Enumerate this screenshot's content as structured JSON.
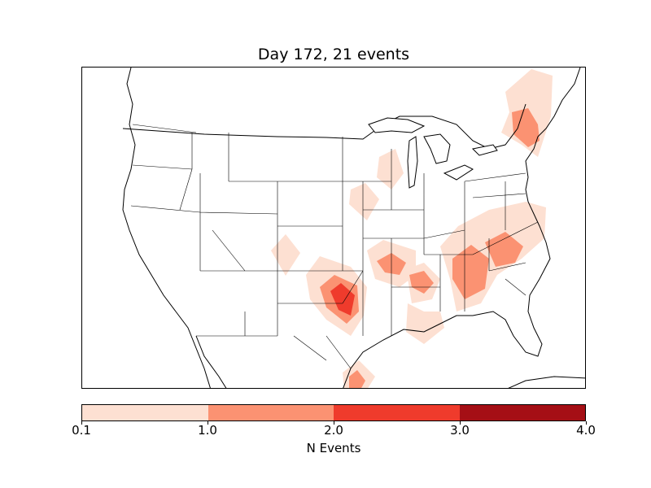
{
  "title": "Day 172, 21 events",
  "colorbar": {
    "label": "N Events",
    "ticks": [
      "0.1",
      "1.0",
      "2.0",
      "3.0",
      "4.0"
    ],
    "bins": [
      {
        "range": [
          0.1,
          1.0
        ],
        "color": "#fde0d2"
      },
      {
        "range": [
          1.0,
          2.0
        ],
        "color": "#fb9272"
      },
      {
        "range": [
          2.0,
          3.0
        ],
        "color": "#ef3b2c"
      },
      {
        "range": [
          3.0,
          4.0
        ],
        "color": "#a50f15"
      }
    ]
  },
  "map": {
    "region": "continental United States",
    "projection": "lambert-conformal",
    "features": [
      "coastlines",
      "country-borders",
      "state-borders",
      "great-lakes"
    ]
  },
  "event_regions": [
    {
      "area": "northern New England",
      "level": 1
    },
    {
      "area": "New Hampshire / Massachusetts",
      "level": 2
    },
    {
      "area": "Iowa / Wisconsin",
      "level": 1
    },
    {
      "area": "Illinois",
      "level": 1
    },
    {
      "area": "New Mexico / Colorado",
      "level": 1
    },
    {
      "area": "Oklahoma / north Texas",
      "level": 3
    },
    {
      "area": "Missouri / Arkansas",
      "level": 2
    },
    {
      "area": "Mississippi",
      "level": 2
    },
    {
      "area": "Georgia / Alabama",
      "level": 2
    },
    {
      "area": "Carolinas / Virginia",
      "level": 2
    },
    {
      "area": "Louisiana / Mississippi coast",
      "level": 1
    },
    {
      "area": "south Texas",
      "level": 2
    }
  ]
}
